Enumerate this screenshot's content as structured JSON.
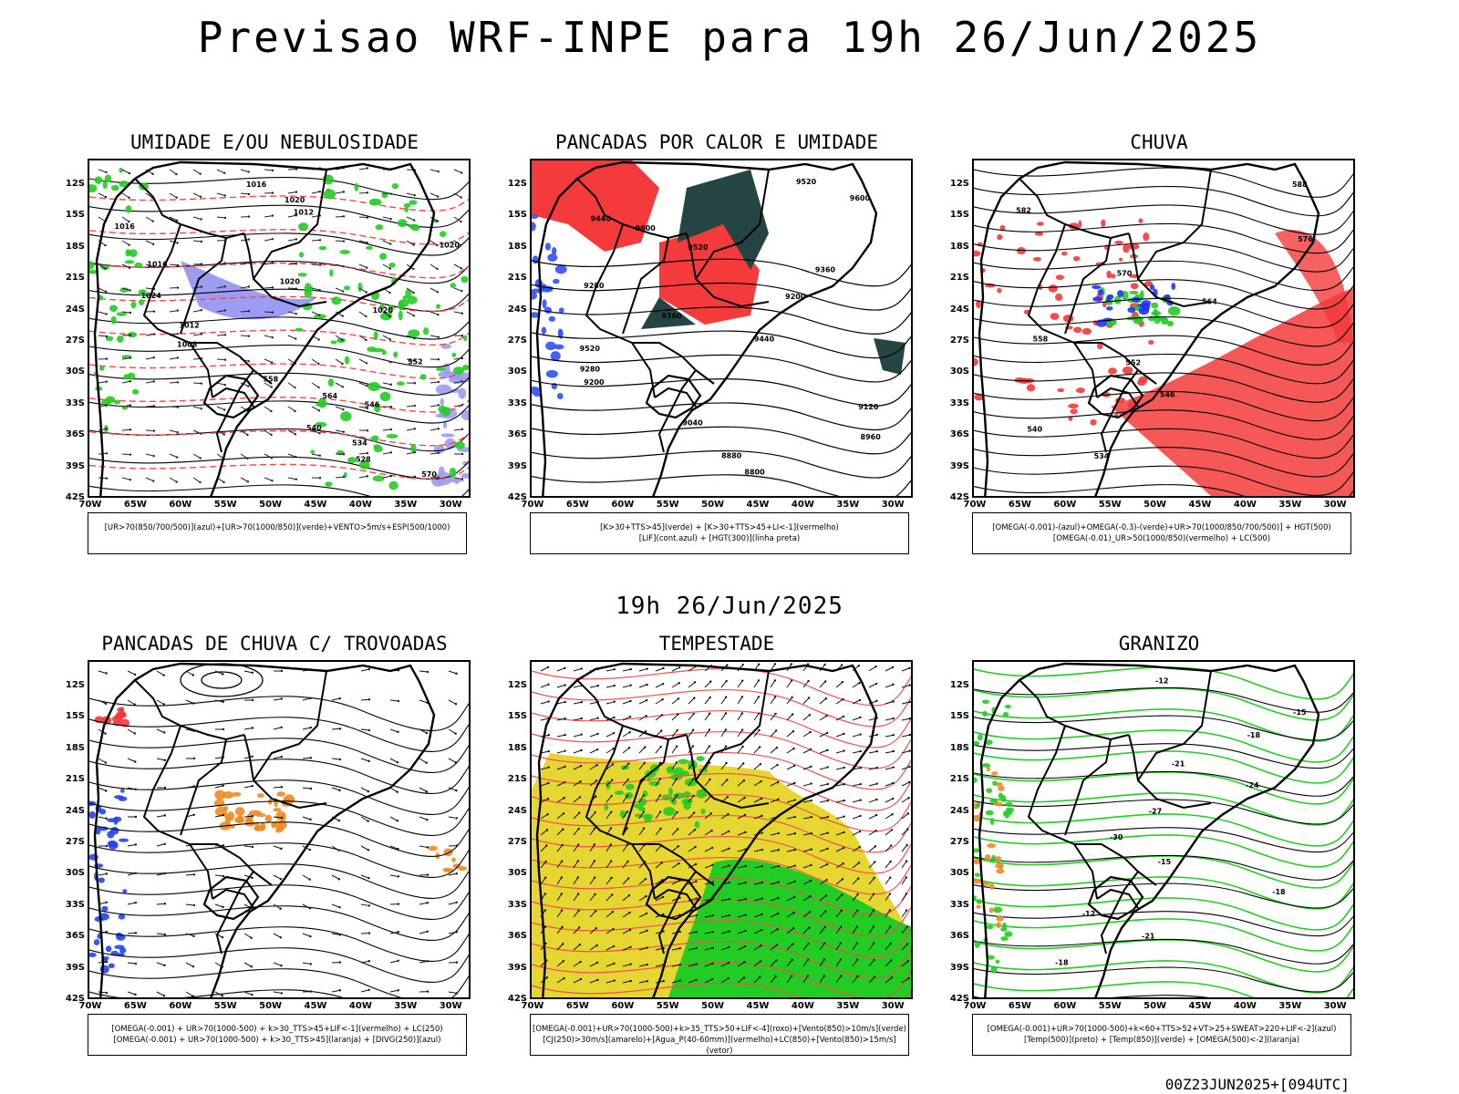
{
  "header": {
    "title": "Previsao WRF-INPE  para 19h 26/Jun/2025",
    "subtitle": "19h 26/Jun/2025",
    "footer": "00Z23JUN2025+[094UTC]"
  },
  "axes": {
    "lat_labels": [
      "12S",
      "15S",
      "18S",
      "21S",
      "24S",
      "27S",
      "30S",
      "33S",
      "36S",
      "39S",
      "42S"
    ],
    "lon_labels": [
      "70W",
      "65W",
      "60W",
      "55W",
      "50W",
      "45W",
      "40W",
      "35W",
      "30W"
    ]
  },
  "panels": [
    {
      "id": "umidade",
      "title": "UMIDADE E/OU NEBULOSIDADE",
      "legend": [
        "[UR>70(850/700/500)](azul)+[UR>70(1000/850)](verde)+VENTO>5m/s+ESP(500/1000)"
      ],
      "contour_labels": [
        "1016",
        "1020",
        "1012",
        "1016",
        "1020",
        "1016",
        "1020",
        "1024",
        "1020",
        "1012",
        "1008",
        "552",
        "558",
        "564",
        "546",
        "540",
        "534",
        "528",
        "570"
      ],
      "colors": {
        "blue": "#9c9cf2",
        "green": "#22cc22",
        "red": "#ff4444"
      }
    },
    {
      "id": "pancadas-calor",
      "title": "PANCADAS POR CALOR E UMIDADE",
      "legend": [
        "[K>30+TTS>45](verde) + [K>30+TTS>45+LI<-1](vermelho)",
        "[LIF](cont.azul) + [HGT(300)](linha preta)"
      ],
      "contour_labels": [
        "9520",
        "9600",
        "9440",
        "9600",
        "9520",
        "9360",
        "9280",
        "9200",
        "9360",
        "9440",
        "9520",
        "9280",
        "9200",
        "9120",
        "9040",
        "8960",
        "8880",
        "8800"
      ],
      "colors": {
        "red": "#f43a3a",
        "dark": "#254545",
        "blue": "#3050ff"
      }
    },
    {
      "id": "chuva",
      "title": "CHUVA",
      "legend": [
        "[OMEGA(-0.001)-(azul)+OMEGA(-0.3)-(verde)+UR>70(1000/850/700/500)] + HGT(500)",
        "[OMEGA(-0.01)_UR>50(1000/850)(vermelho) + LC(500)"
      ],
      "contour_labels": [
        "588",
        "582",
        "576",
        "570",
        "564",
        "558",
        "552",
        "546",
        "540",
        "534"
      ],
      "colors": {
        "red": "#f43a3a",
        "blue": "#2233ff",
        "green": "#22cc22"
      }
    },
    {
      "id": "trovoadas",
      "title": "PANCADAS DE CHUVA C/ TROVOADAS",
      "legend": [
        "[OMEGA(-0.001) + UR>70(1000-500) + k>30_TTS>45+LIF<-1](vermelho) + LC(250)",
        "[OMEGA(-0.001) + UR>70(1000-500) + k>30_TTS>45](laranja) + [DIVG(250)](azul)"
      ],
      "contour_labels": [],
      "colors": {
        "red": "#f43a3a",
        "orange": "#ef8a22",
        "blue": "#2244ee"
      }
    },
    {
      "id": "tempestade",
      "title": "TEMPESTADE",
      "legend": [
        "[OMEGA(-0.001)+UR>70(1000-500)+k>35_TTS>50+LIF<-4](roxo)+[Vento(850)>10m/s](verde)",
        "[CJ(250)>30m/s](amarelo)+[Agua_P(40-60mm)](vermelho)+LC(850)+[Vento(850)>15m/s](vetor)"
      ],
      "contour_labels": [],
      "colors": {
        "yellow": "#e6d632",
        "green": "#22cc22",
        "red": "#f05050"
      }
    },
    {
      "id": "granizo",
      "title": "GRANIZO",
      "legend": [
        "[OMEGA(-0.001)+UR>70(1000-500)+k<60+TTS>52+VT>25+SWEAT>220+LIF<-2](azul)",
        "[Temp(500)](preto) + [Temp(850)](verde) + [OMEGA(500)<-2](laranja)"
      ],
      "contour_labels": [
        "-12",
        "-15",
        "-18",
        "-21",
        "-24",
        "-27",
        "-30",
        "-15",
        "-18",
        "-12",
        "-21",
        "-18"
      ],
      "colors": {
        "green": "#22cc22",
        "orange": "#ef8a22",
        "blue": "#2244ee"
      }
    }
  ]
}
